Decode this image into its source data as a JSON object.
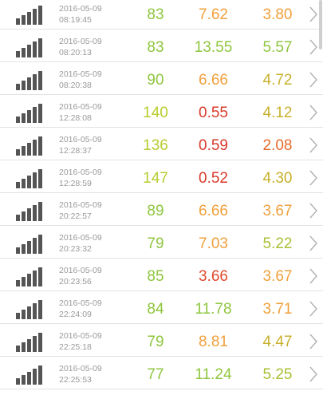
{
  "rows": [
    {
      "date": "2016-05-09",
      "time": "08:19:45",
      "v1": "83",
      "v1_color": "#8fc63f",
      "v2": "7.62",
      "v2_color": "#f0a03c",
      "v3": "3.80",
      "v3_color": "#f0a03c"
    },
    {
      "date": "2016-05-09",
      "time": "08:20:13",
      "v1": "83",
      "v1_color": "#8fc63f",
      "v2": "13.55",
      "v2_color": "#8fc63f",
      "v3": "5.57",
      "v3_color": "#8fc63f"
    },
    {
      "date": "2016-05-09",
      "time": "08:20:38",
      "v1": "90",
      "v1_color": "#8fc63f",
      "v2": "6.66",
      "v2_color": "#f0a03c",
      "v3": "4.72",
      "v3_color": "#c8b02c"
    },
    {
      "date": "2016-05-09",
      "time": "12:28:08",
      "v1": "140",
      "v1_color": "#b8cc2e",
      "v2": "0.55",
      "v2_color": "#d83a2a",
      "v3": "4.12",
      "v3_color": "#c8b02c"
    },
    {
      "date": "2016-05-09",
      "time": "12:28:37",
      "v1": "136",
      "v1_color": "#b8cc2e",
      "v2": "0.59",
      "v2_color": "#d83a2a",
      "v3": "2.08",
      "v3_color": "#e66a2c"
    },
    {
      "date": "2016-05-09",
      "time": "12:28:59",
      "v1": "147",
      "v1_color": "#b8cc2e",
      "v2": "0.52",
      "v2_color": "#d83a2a",
      "v3": "4.30",
      "v3_color": "#c8b02c"
    },
    {
      "date": "2016-05-09",
      "time": "20:22:57",
      "v1": "89",
      "v1_color": "#8fc63f",
      "v2": "6.66",
      "v2_color": "#f0a03c",
      "v3": "3.67",
      "v3_color": "#f0a03c"
    },
    {
      "date": "2016-05-09",
      "time": "20:23:32",
      "v1": "79",
      "v1_color": "#8fc63f",
      "v2": "7.03",
      "v2_color": "#f0a03c",
      "v3": "5.22",
      "v3_color": "#a8c034"
    },
    {
      "date": "2016-05-09",
      "time": "20:23:56",
      "v1": "85",
      "v1_color": "#8fc63f",
      "v2": "3.66",
      "v2_color": "#e04a2e",
      "v3": "3.67",
      "v3_color": "#f0a03c"
    },
    {
      "date": "2016-05-09",
      "time": "22:24:09",
      "v1": "84",
      "v1_color": "#8fc63f",
      "v2": "11.78",
      "v2_color": "#8fc63f",
      "v3": "3.71",
      "v3_color": "#f0a03c"
    },
    {
      "date": "2016-05-09",
      "time": "22:25:18",
      "v1": "79",
      "v1_color": "#8fc63f",
      "v2": "8.81",
      "v2_color": "#f0a03c",
      "v3": "4.47",
      "v3_color": "#c8b02c"
    },
    {
      "date": "2016-05-09",
      "time": "22:25:53",
      "v1": "77",
      "v1_color": "#8fc63f",
      "v2": "11.24",
      "v2_color": "#8fc63f",
      "v3": "5.25",
      "v3_color": "#a8c034"
    }
  ],
  "icons": {
    "signal": "signal-strength-icon",
    "chevron": "chevron-right-icon"
  },
  "colors": {
    "signal_bars": "#555555",
    "chevron": "#b0b0b0",
    "divider": "#e2e2e2",
    "timestamp": "#9a9a9a"
  }
}
